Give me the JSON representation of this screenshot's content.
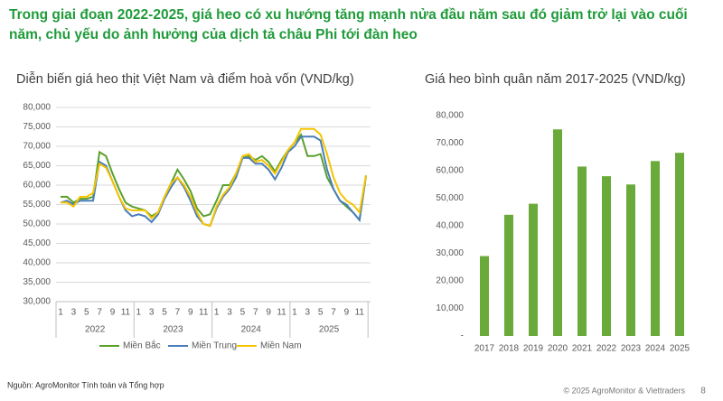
{
  "title": "Trong giai đoạn 2022-2025, giá heo có xu hướng tăng mạnh nửa đầu năm sau đó giảm trở lại vào cuối năm, chủ yếu do ảnh hưởng của dịch tả châu Phi tới đàn heo",
  "chart_data": [
    {
      "type": "line",
      "title": "Diễn biến giá heo thịt Việt Nam và điểm hoà vốn (VND/kg)",
      "categories": [
        "1",
        null,
        "3",
        null,
        "5",
        null,
        "7",
        null,
        "9",
        null,
        "11",
        null,
        "1",
        null,
        "3",
        null,
        "5",
        null,
        "7",
        null,
        "9",
        null,
        "11",
        null,
        "1",
        null,
        "3",
        null,
        "5",
        null,
        "7",
        null,
        "9",
        null,
        "11",
        null,
        "1",
        null,
        "3",
        null,
        "5",
        null,
        "7",
        null,
        "9",
        null,
        "11",
        null
      ],
      "groups": [
        "2022",
        "2023",
        "2024",
        "2025"
      ],
      "series": [
        {
          "name": "Miền Bắc",
          "color": "#5aa02c",
          "values": [
            57000,
            57000,
            55500,
            56500,
            56500,
            57000,
            68500,
            67500,
            63000,
            59000,
            55500,
            54500,
            54000,
            53500,
            52000,
            53000,
            57000,
            60500,
            64000,
            61500,
            58500,
            54000,
            52000,
            52500,
            56000,
            60000,
            60000,
            63000,
            67000,
            67500,
            66500,
            67500,
            66000,
            63500,
            66500,
            69000,
            71000,
            73000,
            67500,
            67500,
            68000,
            62000,
            59000,
            56000,
            54500,
            53000,
            51000,
            62500
          ]
        },
        {
          "name": "Miền Trung",
          "color": "#4a7ebb",
          "values": [
            55500,
            56000,
            55000,
            56000,
            56000,
            56000,
            66000,
            65000,
            61000,
            57000,
            53500,
            52000,
            52500,
            52000,
            50500,
            52500,
            56500,
            59500,
            62000,
            59500,
            56000,
            52000,
            50000,
            49500,
            54000,
            57000,
            59000,
            62000,
            67000,
            67000,
            65500,
            65500,
            64000,
            61500,
            64500,
            68500,
            70000,
            72500,
            72500,
            72500,
            71500,
            64000,
            59000,
            56000,
            55000,
            53000,
            51000,
            62500
          ]
        },
        {
          "name": "Miền Nam",
          "color": "#f5c400",
          "values": [
            55500,
            55500,
            54500,
            57000,
            57000,
            58000,
            65500,
            64500,
            61000,
            57000,
            54000,
            53500,
            53500,
            53500,
            51500,
            53000,
            57000,
            60500,
            62000,
            60000,
            57000,
            53000,
            50000,
            49500,
            54500,
            57500,
            59500,
            63000,
            67500,
            68000,
            66000,
            66500,
            65000,
            63000,
            66000,
            69000,
            71000,
            74500,
            74500,
            74500,
            73000,
            68000,
            62000,
            58000,
            56000,
            55000,
            53000,
            62500
          ]
        }
      ],
      "ylim": [
        30000,
        80000
      ],
      "yticks": [
        {
          "value": 30000,
          "label": "30,000"
        },
        {
          "value": 35000,
          "label": "35,000"
        },
        {
          "value": 40000,
          "label": "40,000"
        },
        {
          "value": 45000,
          "label": "45,000"
        },
        {
          "value": 50000,
          "label": "50,000"
        },
        {
          "value": 55000,
          "label": "55,000"
        },
        {
          "value": 60000,
          "label": "60,000"
        },
        {
          "value": 65000,
          "label": "65,000"
        },
        {
          "value": 70000,
          "label": "70,000"
        },
        {
          "value": 75000,
          "label": "75,000"
        },
        {
          "value": 80000,
          "label": "80,000"
        }
      ],
      "grid": true
    },
    {
      "type": "bar",
      "title": "Giá heo bình quân năm 2017-2025 (VND/kg)",
      "categories": [
        "2017",
        "2018",
        "2019",
        "2020",
        "2021",
        "2022",
        "2023",
        "2024",
        "2025"
      ],
      "values": [
        29000,
        44000,
        48000,
        75000,
        61500,
        58000,
        55000,
        63500,
        66500
      ],
      "color": "#6aaa3a",
      "ylim": [
        0,
        80000
      ],
      "yticks": [
        {
          "value": 0,
          "label": "-"
        },
        {
          "value": 10000,
          "label": "10,000"
        },
        {
          "value": 20000,
          "label": "20,000"
        },
        {
          "value": 30000,
          "label": "30,000"
        },
        {
          "value": 40000,
          "label": "40,000"
        },
        {
          "value": 50000,
          "label": "50,000"
        },
        {
          "value": 60000,
          "label": "60,000"
        },
        {
          "value": 70000,
          "label": "70,000"
        },
        {
          "value": 80000,
          "label": "80,000"
        }
      ],
      "grid": false
    }
  ],
  "source": "Nguồn: AgroMonitor Tính toán và Tổng hợp",
  "copyright": "© 2025 AgroMonitor & Viettraders",
  "page": "8"
}
